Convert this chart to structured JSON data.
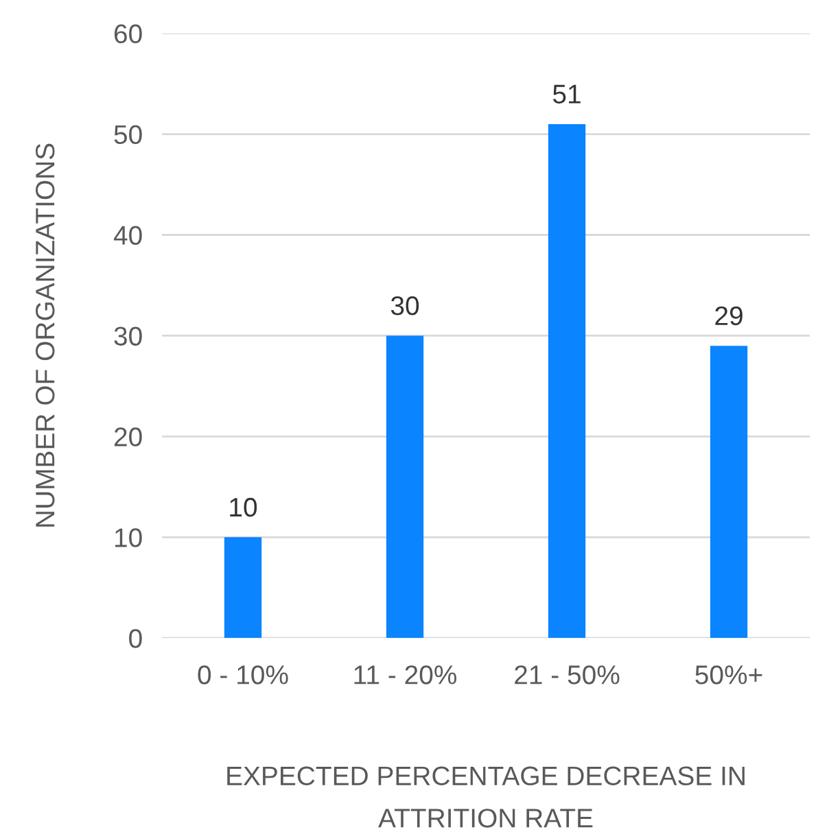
{
  "chart_data": {
    "type": "bar",
    "xlabel": "EXPECTED PERCENTAGE DECREASE IN\nATTRITION RATE",
    "ylabel": "NUMBER OF ORGANIZATIONS",
    "categories": [
      "0 - 10%",
      "11 - 20%",
      "21 - 50%",
      "50%+"
    ],
    "values": [
      10,
      30,
      51,
      29
    ],
    "color": "#0a84ff",
    "ylim": [
      0,
      60
    ],
    "yticks": [
      0,
      10,
      20,
      30,
      40,
      50,
      60
    ],
    "grid": "y",
    "data_labels": true,
    "legend": false
  }
}
